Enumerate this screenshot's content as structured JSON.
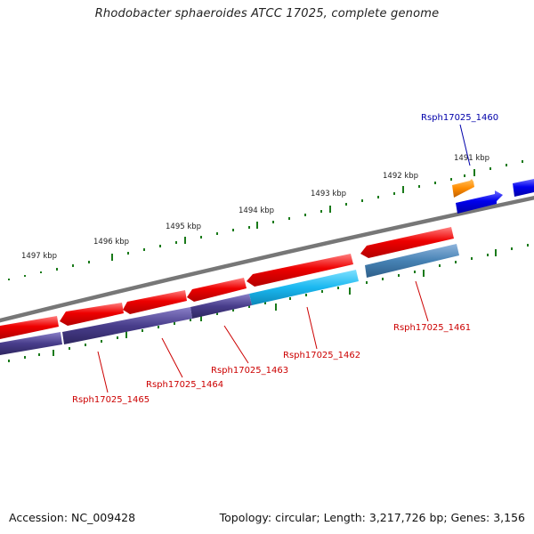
{
  "title": "Rhodobacter sphaeroides ATCC 17025, complete genome",
  "footer": {
    "accession": "Accession: NC_009428",
    "summary": "Topology: circular; Length: 3,217,726 bp; Genes: 3,156"
  },
  "scale_labels": [
    "1491 kbp",
    "1492 kbp",
    "1493 kbp",
    "1494 kbp",
    "1495 kbp",
    "1496 kbp",
    "1497 kbp"
  ],
  "genes": [
    {
      "id": "Rsph17025_1460",
      "label_color": "#0000aa"
    },
    {
      "id": "Rsph17025_1461",
      "label_color": "#cc0000"
    },
    {
      "id": "Rsph17025_1462",
      "label_color": "#cc0000"
    },
    {
      "id": "Rsph17025_1463",
      "label_color": "#cc0000"
    },
    {
      "id": "Rsph17025_1464",
      "label_color": "#cc0000"
    },
    {
      "id": "Rsph17025_1465",
      "label_color": "#cc0000"
    }
  ],
  "colors": {
    "backbone": "#777777",
    "tick": "#1a7a1a",
    "cds_forward": "#0000ee",
    "cds_reverse": "#ee0000",
    "rna": "#ff8c00",
    "feature_cyan": "#1ab8f0",
    "feature_steel": "#4682b4",
    "feature_purple": "#483d8b"
  }
}
